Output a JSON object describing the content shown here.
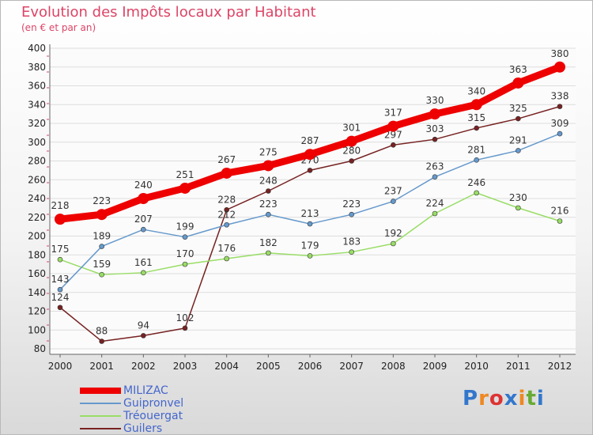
{
  "header": {
    "title": "Evolution des Impôts locaux par Habitant",
    "subtitle": "(en € et par an)"
  },
  "logo": {
    "text": "Proxiti"
  },
  "colors": {
    "MILIZAC": "#ee0000",
    "Guipronvel": "#6699cc",
    "Tréouergat": "#99dd66",
    "Guilers": "#772222"
  },
  "chart_data": {
    "type": "line",
    "title": "Evolution des Impôts locaux par Habitant",
    "ylabel": "(en € et par an)",
    "xlabel": "",
    "categories": [
      "2000",
      "2001",
      "2002",
      "2003",
      "2004",
      "2005",
      "2006",
      "2007",
      "2008",
      "2009",
      "2010",
      "2011",
      "2012"
    ],
    "ylim": [
      80,
      400
    ],
    "yticks": [
      80,
      100,
      120,
      140,
      160,
      180,
      200,
      220,
      240,
      260,
      280,
      300,
      320,
      340,
      360,
      380,
      400
    ],
    "grid": "horizontal",
    "legend_position": "bottom-left",
    "series": [
      {
        "name": "MILIZAC",
        "values": [
          218,
          223,
          240,
          251,
          267,
          275,
          287,
          301,
          317,
          330,
          340,
          363,
          380
        ]
      },
      {
        "name": "Guipronvel",
        "values": [
          143,
          189,
          207,
          199,
          212,
          223,
          213,
          223,
          237,
          263,
          281,
          291,
          309
        ]
      },
      {
        "name": "Tréouergat",
        "values": [
          175,
          159,
          161,
          170,
          176,
          182,
          179,
          183,
          192,
          224,
          246,
          230,
          216
        ]
      },
      {
        "name": "Guilers",
        "values": [
          124,
          88,
          94,
          102,
          228,
          248,
          270,
          280,
          297,
          303,
          315,
          325,
          338
        ]
      }
    ]
  }
}
